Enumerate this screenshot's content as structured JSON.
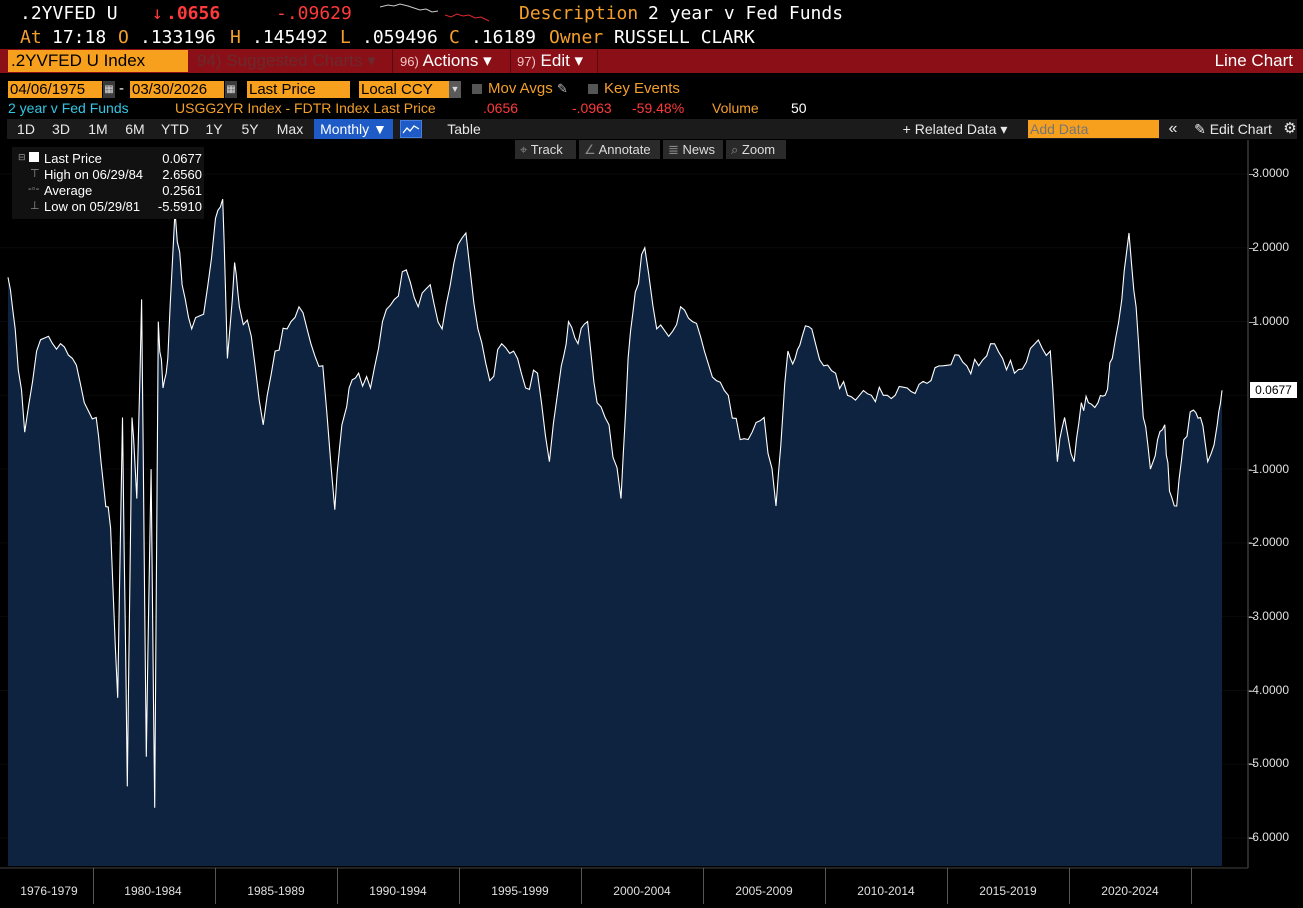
{
  "header": {
    "ticker": ".2YVFED U",
    "arrow": "↓",
    "last": ".0656",
    "change": "-.09629",
    "description_label": "Description",
    "description": "2 year v Fed Funds",
    "at_label": "At",
    "time": "17:18",
    "o_label": "O",
    "open": ".133196",
    "h_label": "H",
    "high": ".145492",
    "l_label": "L",
    "low": ".059496",
    "c_label": "C",
    "close": ".16189",
    "owner_label": "Owner",
    "owner": "RUSSELL CLARK"
  },
  "menubar": {
    "security": ".2YVFED U Index",
    "suggested": "94) Suggested Charts ▾",
    "actions_num": "96)",
    "actions": "Actions ▾",
    "edit_num": "97)",
    "edit": "Edit ▾",
    "chart_type": "Line Chart"
  },
  "range": {
    "start": "04/06/1975",
    "dash": "-",
    "end": "03/30/2026",
    "field": "Last Price",
    "currency": "Local CCY",
    "mov_avgs": "Mov Avgs",
    "key_events": "Key Events"
  },
  "series_line": {
    "name": "2 year v Fed Funds",
    "expr": "USGG2YR Index - FDTR Index Last Price",
    "value": ".0656",
    "change": "-.0963",
    "pct": "-59.48%",
    "volume_label": "Volume",
    "volume": "50"
  },
  "toolbar": {
    "periods": [
      "1D",
      "3D",
      "1M",
      "6M",
      "YTD",
      "1Y",
      "5Y",
      "Max"
    ],
    "frequency": "Monthly ▼",
    "table": "Table",
    "related": "+ Related Data ▾",
    "add_data_placeholder": "Add Data",
    "collapse": "«",
    "edit_chart": "Edit Chart",
    "track": "Track",
    "annotate": "Annotate",
    "news": "News",
    "zoom": "Zoom"
  },
  "legend": {
    "last_label": "Last Price",
    "last_value": "0.0677",
    "high_label": "High on 06/29/84",
    "high_value": "2.6560",
    "avg_label": "Average",
    "avg_value": "0.2561",
    "low_label": "Low on 05/29/81",
    "low_value": "-5.5910"
  },
  "colors": {
    "background": "#000000",
    "fill": "#0d2340",
    "line": "#ffffff",
    "accent_orange": "#f7a01e",
    "menubar_red": "#8b0f16",
    "down_red": "#ff3a3a"
  },
  "chart_data": {
    "type": "area",
    "title": "",
    "ylim": [
      -6.4,
      3.4
    ],
    "yticks": [
      "3.0000",
      "2.0000",
      "1.0000",
      "-1.0000",
      "-2.0000",
      "-3.0000",
      "-4.0000",
      "-5.0000",
      "-6.0000"
    ],
    "x_labels": [
      "1976-1979",
      "1980-1984",
      "1985-1989",
      "1990-1994",
      "1995-1999",
      "2000-2004",
      "2005-2009",
      "2010-2014",
      "2015-2019",
      "2020-2024"
    ],
    "last_value_label": "0.0677",
    "series": [
      {
        "x": [
          1975.3,
          1975.6,
          1976.0,
          1976.5,
          1977.0,
          1977.5,
          1978.0,
          1978.5,
          1979.0,
          1979.3,
          1979.6,
          1979.9,
          1980.1,
          1980.3,
          1980.5,
          1980.7,
          1980.9,
          1981.1,
          1981.3,
          1981.45,
          1981.6,
          1981.8,
          1982.0,
          1982.3,
          1982.6,
          1983.0,
          1983.5,
          1984.0,
          1984.3,
          1984.5,
          1984.8,
          1985.0,
          1985.5,
          1986.0,
          1986.5,
          1987.0,
          1987.5,
          1988.0,
          1988.5,
          1989.0,
          1989.3,
          1989.6,
          1990.0,
          1990.5,
          1991.0,
          1991.5,
          1992.0,
          1992.5,
          1993.0,
          1993.5,
          1994.0,
          1994.5,
          1995.0,
          1995.5,
          1996.0,
          1996.5,
          1997.0,
          1997.5,
          1998.0,
          1998.5,
          1998.8,
          1999.2,
          1999.6,
          2000.0,
          2000.5,
          2001.0,
          2001.3,
          2001.6,
          2002.0,
          2002.5,
          2003.0,
          2003.5,
          2004.0,
          2004.5,
          2005.0,
          2005.5,
          2006.0,
          2006.5,
          2007.0,
          2007.5,
          2007.8,
          2008.0,
          2008.3,
          2008.6,
          2009.0,
          2009.5,
          2010.0,
          2010.5,
          2011.0,
          2011.5,
          2012.0,
          2012.5,
          2013.0,
          2013.5,
          2014.0,
          2014.5,
          2015.0,
          2015.5,
          2016.0,
          2016.5,
          2017.0,
          2017.5,
          2018.0,
          2018.5,
          2019.0,
          2019.3,
          2019.6,
          2020.0,
          2020.3,
          2020.6,
          2021.0,
          2021.3,
          2021.6,
          2022.0,
          2022.3,
          2022.6,
          2022.9,
          2023.2,
          2023.5,
          2023.8,
          2024.0,
          2024.3,
          2024.6,
          2025.0,
          2025.3,
          2025.6,
          2026.0,
          2026.2
        ],
        "y": [
          1.6,
          0.9,
          -0.5,
          0.6,
          0.8,
          0.7,
          0.5,
          -0.1,
          -0.3,
          -1.2,
          -1.8,
          -4.1,
          -0.3,
          -5.3,
          -0.3,
          -1.4,
          1.3,
          -4.9,
          -1.0,
          -5.59,
          1.0,
          0.1,
          0.5,
          2.5,
          1.5,
          0.9,
          1.1,
          2.4,
          2.66,
          0.5,
          1.8,
          1.2,
          0.8,
          -0.4,
          0.6,
          0.9,
          1.2,
          0.7,
          0.4,
          -1.55,
          -0.4,
          0.1,
          0.3,
          0.1,
          1.0,
          1.3,
          1.7,
          1.2,
          1.5,
          0.9,
          1.8,
          2.2,
          0.9,
          0.2,
          0.7,
          0.6,
          0.1,
          0.3,
          -0.9,
          0.4,
          1.0,
          0.7,
          1.0,
          -0.1,
          -0.4,
          -1.4,
          0.5,
          1.4,
          2.0,
          0.9,
          0.8,
          1.2,
          1.0,
          0.6,
          0.2,
          0.0,
          -0.6,
          -0.5,
          -0.3,
          -1.5,
          -0.2,
          0.6,
          0.5,
          0.8,
          0.9,
          0.4,
          0.3,
          0.0,
          0.0,
          0.0,
          0.0,
          0.0,
          0.1,
          0.15,
          0.2,
          0.4,
          0.55,
          0.4,
          0.4,
          0.7,
          0.5,
          0.3,
          0.45,
          0.75,
          0.6,
          -0.9,
          -0.3,
          -0.9,
          -0.1,
          -0.1,
          -0.1,
          0.0,
          0.5,
          1.3,
          2.2,
          1.2,
          -0.3,
          -1.0,
          -0.6,
          -0.4,
          -1.3,
          -1.5,
          -0.6,
          -0.2,
          -0.3,
          -0.9,
          -0.4,
          0.0677
        ]
      }
    ]
  }
}
